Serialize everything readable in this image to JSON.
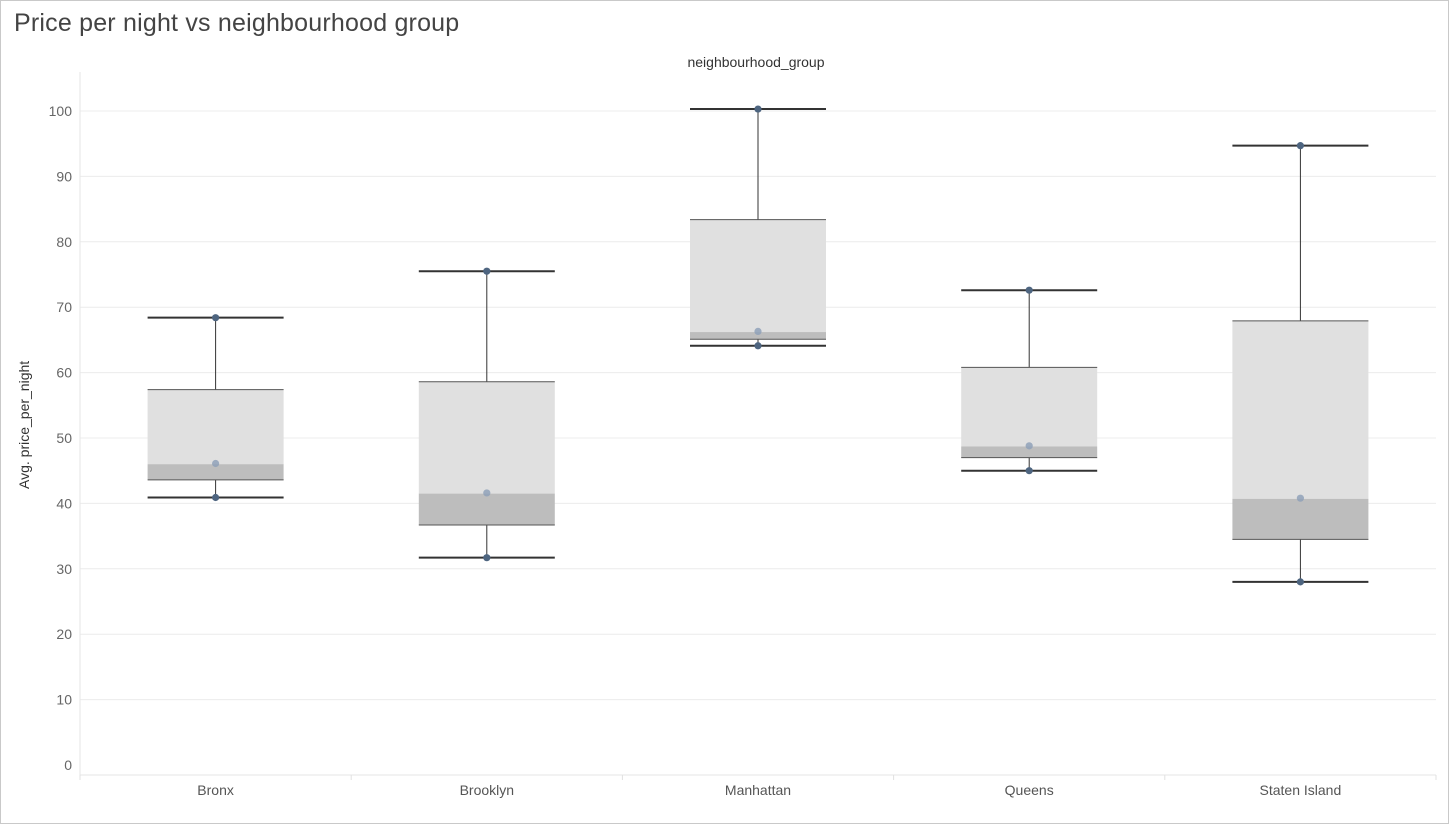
{
  "chart_data": {
    "type": "box",
    "title": "Price per night vs neighbourhood group",
    "column_header": "neighbourhood_group",
    "ylabel": "Avg. price_per_night",
    "ylim": [
      0,
      104
    ],
    "yticks": [
      0,
      10,
      20,
      30,
      40,
      50,
      60,
      70,
      80,
      90,
      100
    ],
    "grid": true,
    "categories": [
      "Bronx",
      "Brooklyn",
      "Manhattan",
      "Queens",
      "Staten Island"
    ],
    "boxes": [
      {
        "category": "Bronx",
        "min": 40.9,
        "q1": 43.6,
        "median": 46.0,
        "q3": 57.4,
        "max": 68.4,
        "points": [
          68.4,
          46.1,
          40.9
        ]
      },
      {
        "category": "Brooklyn",
        "min": 31.7,
        "q1": 36.7,
        "median": 41.5,
        "q3": 58.6,
        "max": 75.5,
        "points": [
          75.5,
          41.6,
          31.7
        ]
      },
      {
        "category": "Manhattan",
        "min": 64.1,
        "q1": 65.1,
        "median": 66.2,
        "q3": 83.4,
        "max": 100.3,
        "points": [
          100.3,
          66.3,
          64.1
        ]
      },
      {
        "category": "Queens",
        "min": 45.0,
        "q1": 47.0,
        "median": 48.7,
        "q3": 60.8,
        "max": 72.6,
        "points": [
          72.6,
          48.8,
          45.0
        ]
      },
      {
        "category": "Staten Island",
        "min": 28.0,
        "q1": 34.5,
        "median": 40.7,
        "q3": 67.9,
        "max": 94.7,
        "points": [
          94.7,
          40.8,
          28.0
        ]
      }
    ],
    "colors": {
      "box_upper": "#e0e0e0",
      "box_lower": "#bdbdbd",
      "whisker": "#333333",
      "point": "#4e6580",
      "point_light": "#8fa1b8",
      "grid": "#ececec",
      "tick_label": "#666666"
    }
  }
}
